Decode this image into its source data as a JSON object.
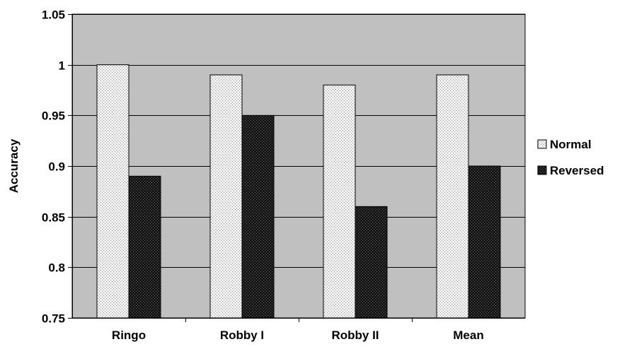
{
  "chart_data": {
    "type": "bar",
    "title": "",
    "xlabel": "",
    "ylabel": "Accuracy",
    "ylim": [
      0.75,
      1.05
    ],
    "yticks": [
      0.75,
      0.8,
      0.85,
      0.9,
      0.95,
      1,
      1.05
    ],
    "ytick_labels": [
      "0.75",
      "0.8",
      "0.85",
      "0.9",
      "0.95",
      "1",
      "1.05"
    ],
    "categories": [
      "Ringo",
      "Robby I",
      "Robby II",
      "Mean"
    ],
    "series": [
      {
        "name": "Normal",
        "values": [
          1.0,
          0.99,
          0.98,
          0.99
        ],
        "pattern": "light-dotted"
      },
      {
        "name": "Reversed",
        "values": [
          0.89,
          0.95,
          0.86,
          0.9
        ],
        "pattern": "dark-dotted"
      }
    ],
    "grid": true,
    "legend_position": "right",
    "colors": {
      "plot_background": "#c0c0c0",
      "normal_fill": "#f2f2f2",
      "reversed_fill": "#1e1e1e",
      "grid": "#000000"
    }
  }
}
